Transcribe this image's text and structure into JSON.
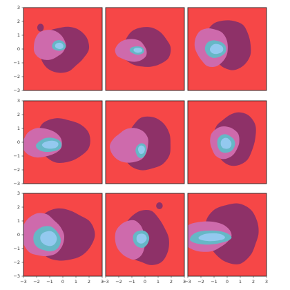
{
  "chart_data": {
    "type": "contour",
    "grid": {
      "rows": 3,
      "cols": 3
    },
    "xlim": [
      -3,
      3
    ],
    "ylim": [
      -3,
      3
    ],
    "xticks": [
      -3,
      -2,
      -1,
      0,
      1,
      2,
      3
    ],
    "yticks": [
      -3,
      -2,
      -1,
      0,
      1,
      2,
      3
    ],
    "shared_axes": true,
    "grid_lines": false,
    "level_colors": [
      "#f64747",
      "#8e3168",
      "#ce6aac",
      "#66b7c6",
      "#93c9ef"
    ],
    "panels": [
      {
        "row": 0,
        "col": 0,
        "level_extents": [
          [
            -1.7,
            0.0,
            1.8,
            1.7
          ],
          [
            -1.05,
            0.3,
            1.15,
            1.15
          ],
          [
            -0.3,
            0.25,
            0.5,
            0.4
          ]
        ],
        "blobs": [
          {
            "x": -1.7,
            "y": 1.55,
            "rx": 0.25,
            "ry": 0.28
          }
        ]
      },
      {
        "row": 0,
        "col": 1,
        "level_extents": [
          [
            -1.5,
            0.1,
            1.7,
            1.55
          ],
          [
            -1.05,
            -0.1,
            1.15,
            0.85
          ],
          [
            -0.6,
            -0.1,
            0.55,
            0.3
          ]
        ],
        "blobs": []
      },
      {
        "row": 0,
        "col": 2,
        "level_extents": [
          [
            -1.55,
            0.35,
            1.75,
            1.8
          ],
          [
            -1.2,
            0.15,
            1.3,
            1.35
          ],
          [
            -0.9,
            0.0,
            0.85,
            0.6
          ]
        ],
        "blobs": []
      },
      {
        "row": 1,
        "col": 0,
        "level_extents": [
          [
            -2.1,
            0.15,
            2.15,
            1.5
          ],
          [
            -1.6,
            -0.05,
            1.6,
            1.0
          ],
          [
            -1.05,
            -0.2,
            1.0,
            0.5
          ]
        ],
        "blobs": []
      },
      {
        "row": 1,
        "col": 1,
        "level_extents": [
          [
            -1.55,
            -0.15,
            1.9,
            1.85
          ],
          [
            -1.15,
            -0.25,
            1.45,
            1.25
          ],
          [
            -0.3,
            -0.6,
            0.4,
            0.55
          ]
        ],
        "blobs": []
      },
      {
        "row": 1,
        "col": 2,
        "level_extents": [
          [
            -0.35,
            0.25,
            1.55,
            2.0
          ],
          [
            -0.2,
            0.0,
            1.05,
            1.25
          ],
          [
            -0.1,
            -0.1,
            0.65,
            0.7
          ]
        ],
        "blobs": []
      },
      {
        "row": 2,
        "col": 0,
        "level_extents": [
          [
            -1.9,
            0.0,
            2.1,
            2.0
          ],
          [
            -1.55,
            -0.05,
            1.55,
            1.6
          ],
          [
            -1.2,
            -0.3,
            1.05,
            0.9
          ]
        ],
        "blobs": []
      },
      {
        "row": 2,
        "col": 1,
        "level_extents": [
          [
            -1.6,
            -0.25,
            1.75,
            1.95
          ],
          [
            -1.1,
            -0.35,
            1.2,
            1.35
          ],
          [
            -0.3,
            -0.3,
            0.65,
            0.6
          ]
        ],
        "blobs": [
          {
            "x": 1.1,
            "y": 2.1,
            "rx": 0.25,
            "ry": 0.25
          }
        ]
      },
      {
        "row": 2,
        "col": 2,
        "level_extents": [
          [
            -1.35,
            0.15,
            2.15,
            2.05
          ],
          [
            -1.6,
            -0.1,
            1.95,
            1.05
          ],
          [
            -1.3,
            -0.2,
            1.6,
            0.5
          ]
        ],
        "blobs": []
      }
    ]
  }
}
